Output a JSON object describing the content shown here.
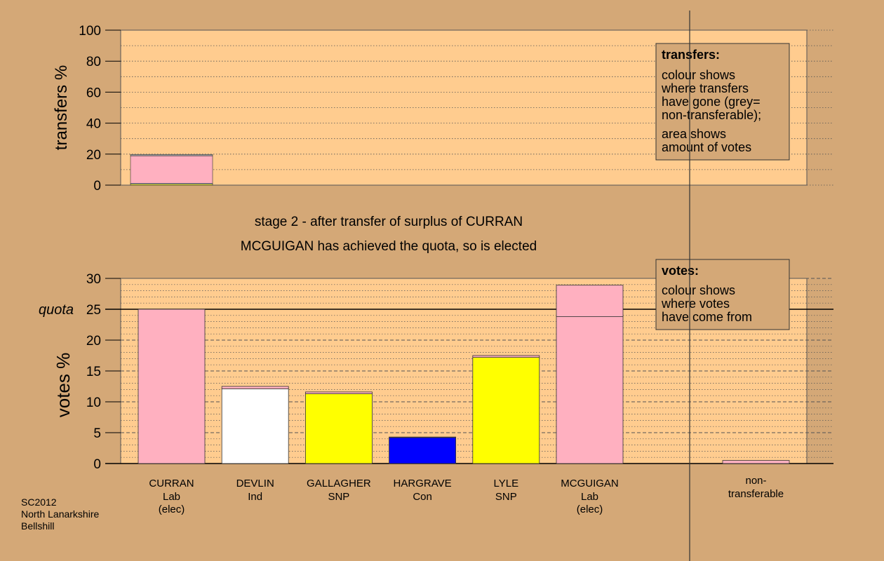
{
  "titles": {
    "stage": "stage 2 - after transfer of surplus of CURRAN",
    "elected": "MCGUIGAN has achieved the quota, so is elected"
  },
  "footer": [
    "SC2012",
    "North Lanarkshire",
    "Bellshill"
  ],
  "legend_transfers": {
    "title": "transfers:",
    "lines1": [
      "colour shows",
      "where transfers",
      "have gone (grey=",
      "non-transferable);"
    ],
    "lines2": [
      "area shows",
      "amount of votes"
    ]
  },
  "legend_votes": {
    "title": "votes:",
    "lines": [
      "colour shows",
      "where votes",
      "have come from"
    ]
  },
  "colors": {
    "background": "#d4a877",
    "plot": "#ffcc8f",
    "Lab": "#ffb0c0",
    "Ind": "#ffffff",
    "SNP": "#ffff00",
    "Con": "#0000ff",
    "nontransferable": "#a0a0a0"
  },
  "chart_data": [
    {
      "type": "bar",
      "stacked": true,
      "ylabel": "transfers %",
      "ylim": [
        0,
        100
      ],
      "yticks": [
        0,
        20,
        40,
        60,
        80,
        100
      ],
      "categories": [
        "CURRAN"
      ],
      "segments": [
        {
          "party": "SNP",
          "value": 0.6
        },
        {
          "party": "Ind",
          "value": 0.6
        },
        {
          "party": "Lab",
          "value": 17.7
        },
        {
          "party": "nontransferable",
          "value": 0.9
        }
      ]
    },
    {
      "type": "bar",
      "stacked": true,
      "ylabel": "votes %",
      "ylim": [
        0,
        30
      ],
      "yticks": [
        0,
        5,
        10,
        15,
        20,
        25,
        30
      ],
      "quota": 25,
      "quota_label": "quota",
      "candidates": [
        {
          "name": "CURRAN",
          "party": "Lab",
          "note": "(elec)",
          "segments": [
            {
              "party": "Lab",
              "value": 25.0
            }
          ]
        },
        {
          "name": "DEVLIN",
          "party": "Ind",
          "note": "",
          "segments": [
            {
              "party": "Ind",
              "value": 12.1
            },
            {
              "party": "Lab",
              "value": 0.4
            }
          ]
        },
        {
          "name": "GALLAGHER",
          "party": "SNP",
          "note": "",
          "segments": [
            {
              "party": "SNP",
              "value": 11.3
            },
            {
              "party": "Lab",
              "value": 0.3
            }
          ]
        },
        {
          "name": "HARGRAVE",
          "party": "Con",
          "note": "",
          "segments": [
            {
              "party": "Con",
              "value": 4.2
            },
            {
              "party": "Lab",
              "value": 0.1
            }
          ]
        },
        {
          "name": "LYLE",
          "party": "SNP",
          "note": "",
          "segments": [
            {
              "party": "SNP",
              "value": 17.2
            },
            {
              "party": "Lab",
              "value": 0.3
            }
          ]
        },
        {
          "name": "MCGUIGAN",
          "party": "Lab",
          "note": "(elec)",
          "segments": [
            {
              "party": "Lab",
              "value": 23.8
            },
            {
              "party": "Lab",
              "value": 5.1
            }
          ]
        }
      ],
      "nontransferable": {
        "label": [
          "non-",
          "transferable"
        ],
        "segments": [
          {
            "party": "Lab",
            "value": 0.5
          }
        ]
      }
    }
  ]
}
